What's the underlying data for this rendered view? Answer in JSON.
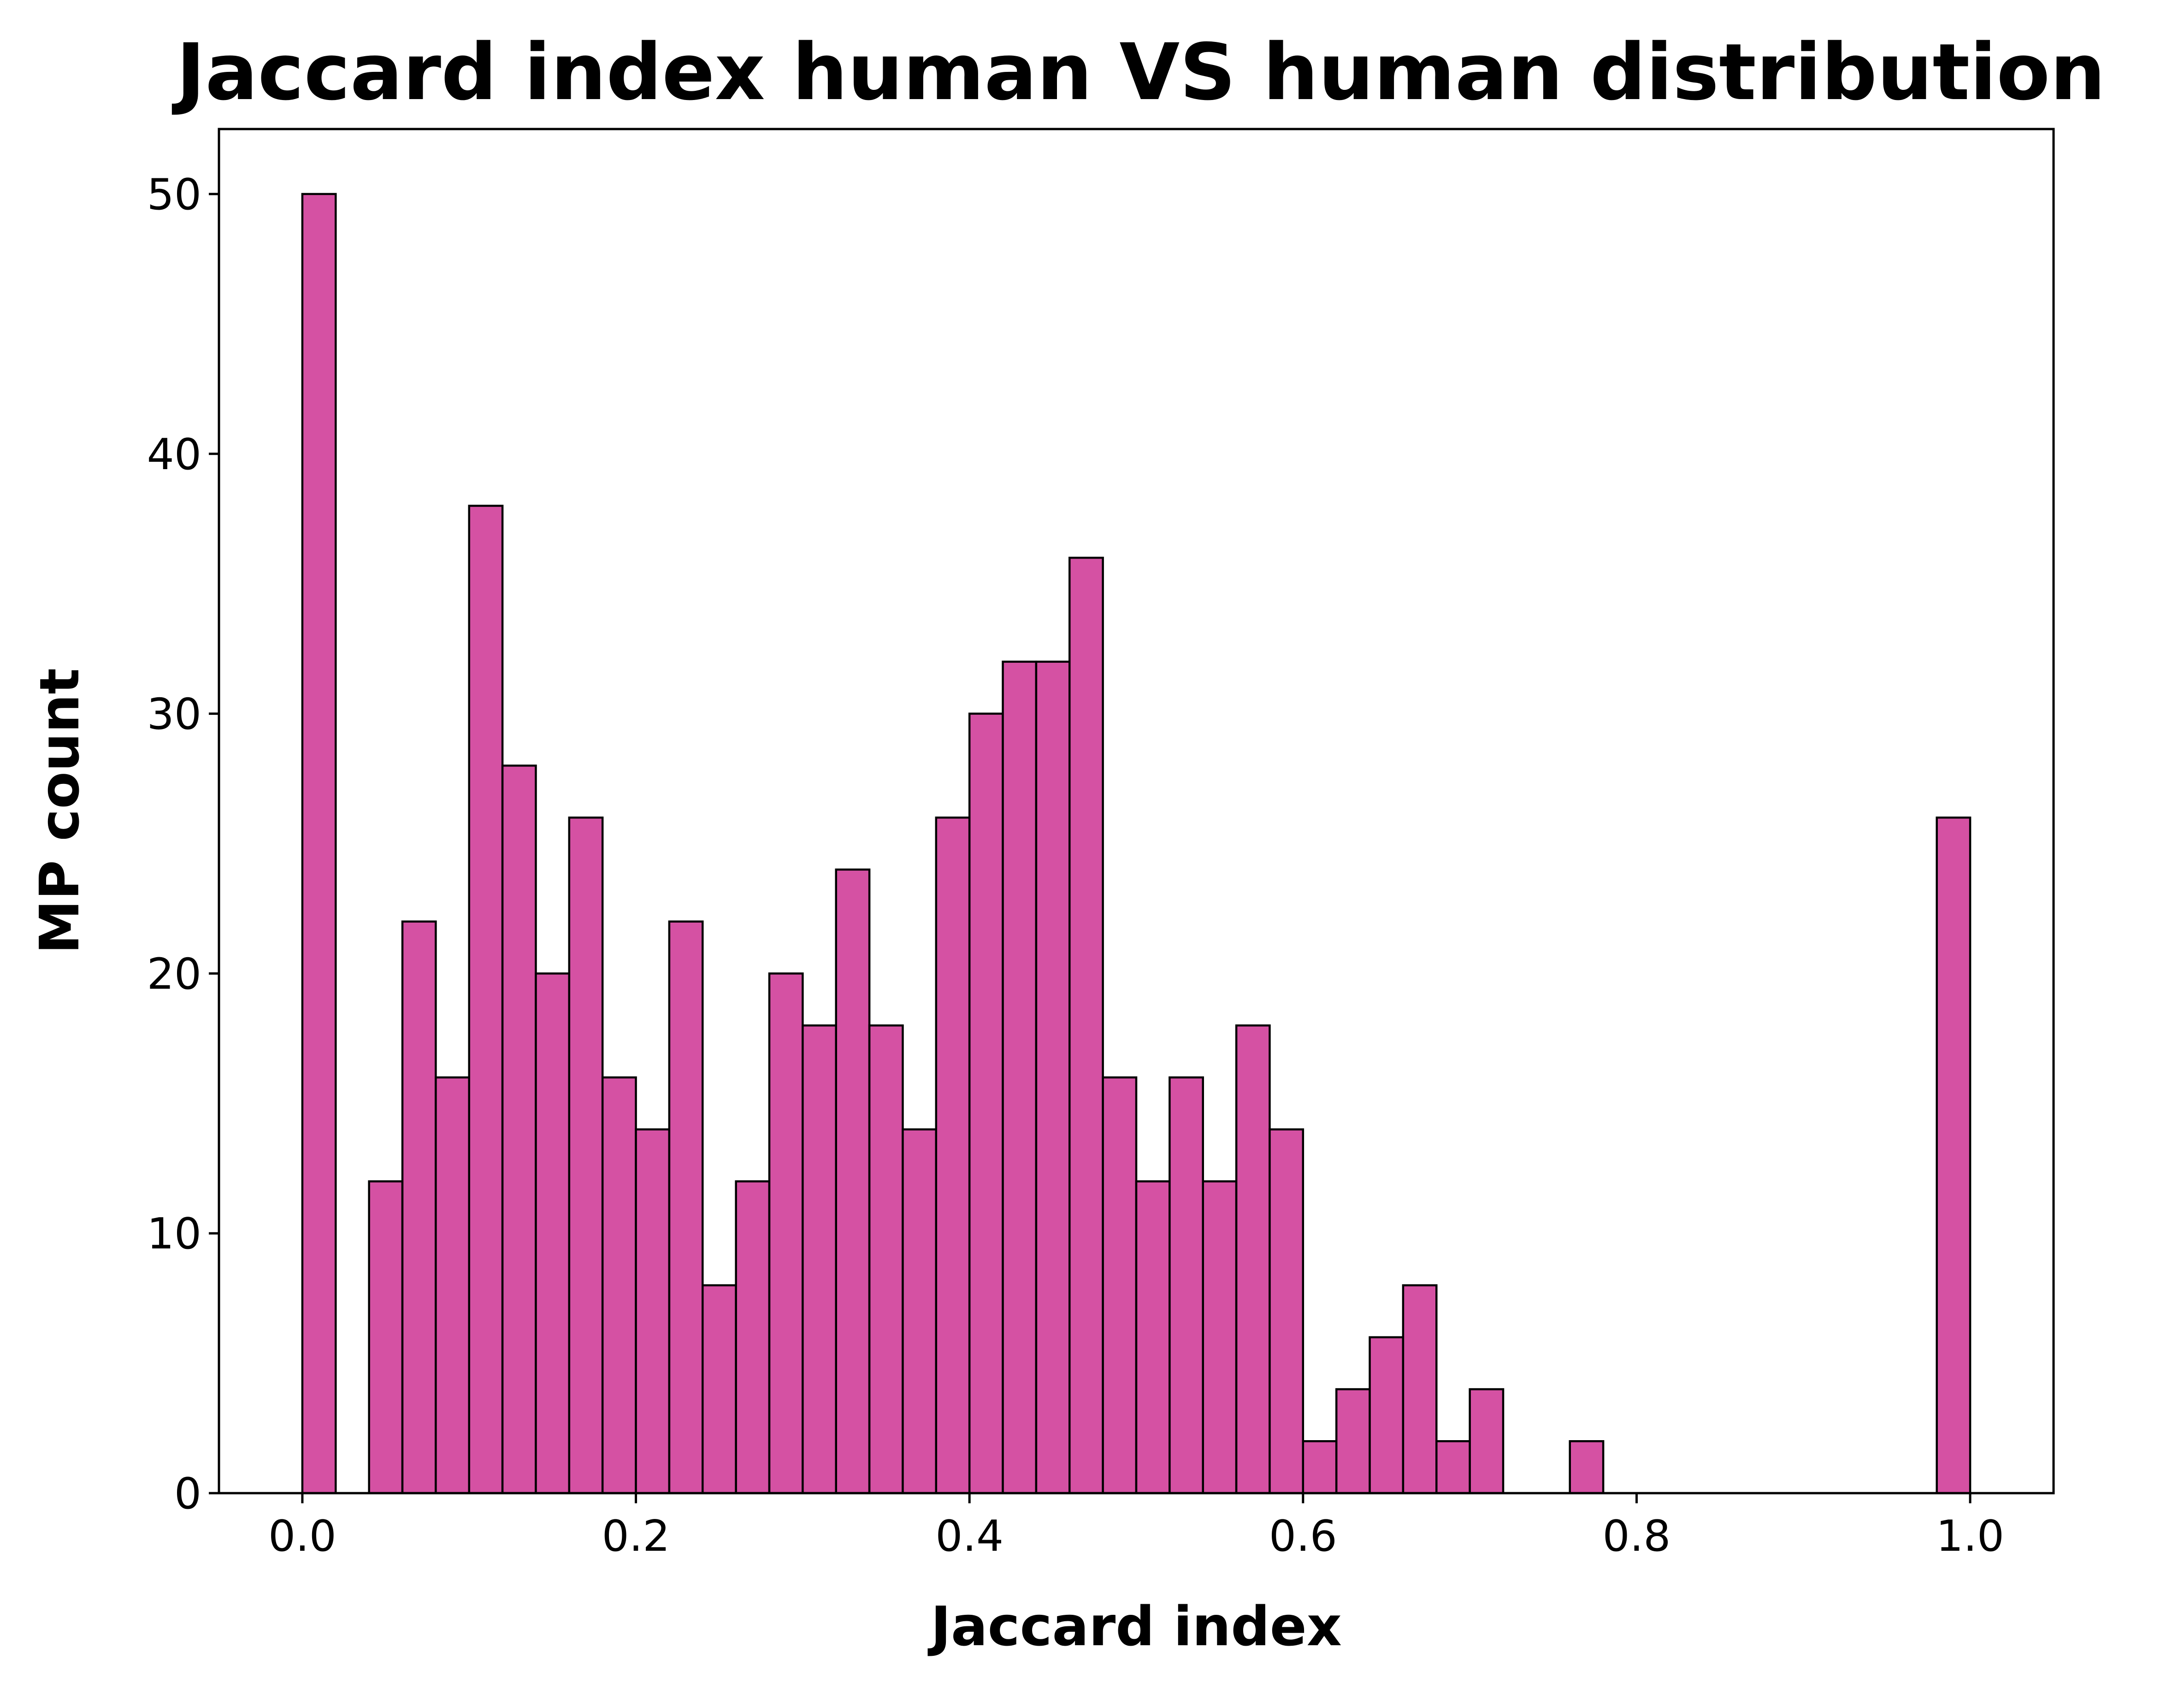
{
  "chart_data": {
    "type": "bar",
    "title": "Jaccard index human VS human distribution",
    "xlabel": "Jaccard index",
    "ylabel": "MP count",
    "xlim": [
      -0.05,
      1.05
    ],
    "ylim": [
      0,
      52.5
    ],
    "xticks": [
      0.0,
      0.2,
      0.4,
      0.6,
      0.8,
      1.0
    ],
    "xtick_labels": [
      "0.0",
      "0.2",
      "0.4",
      "0.6",
      "0.8",
      "1.0"
    ],
    "yticks": [
      0,
      10,
      20,
      30,
      40,
      50
    ],
    "ytick_labels": [
      "0",
      "10",
      "20",
      "30",
      "40",
      "50"
    ],
    "bin_width": 0.02,
    "bin_starts": [
      0.0,
      0.02,
      0.04,
      0.06,
      0.08,
      0.1,
      0.12,
      0.14,
      0.16,
      0.18,
      0.2,
      0.22,
      0.24,
      0.26,
      0.28,
      0.3,
      0.32,
      0.34,
      0.36,
      0.38,
      0.4,
      0.42,
      0.44,
      0.46,
      0.48,
      0.5,
      0.52,
      0.54,
      0.56,
      0.58,
      0.6,
      0.62,
      0.64,
      0.66,
      0.68,
      0.7,
      0.72,
      0.74,
      0.76,
      0.78,
      0.8,
      0.82,
      0.84,
      0.86,
      0.88,
      0.9,
      0.92,
      0.94,
      0.96,
      0.98
    ],
    "values": [
      50,
      0,
      12,
      22,
      16,
      38,
      28,
      20,
      26,
      16,
      14,
      22,
      8,
      12,
      20,
      18,
      24,
      18,
      14,
      26,
      30,
      32,
      32,
      36,
      16,
      12,
      16,
      12,
      18,
      14,
      2,
      4,
      6,
      8,
      2,
      4,
      0,
      0,
      2,
      0,
      0,
      0,
      0,
      0,
      0,
      0,
      0,
      0,
      0,
      26
    ],
    "bar_color": "#d551a3",
    "edge_color": "#000000",
    "grid": false
  }
}
